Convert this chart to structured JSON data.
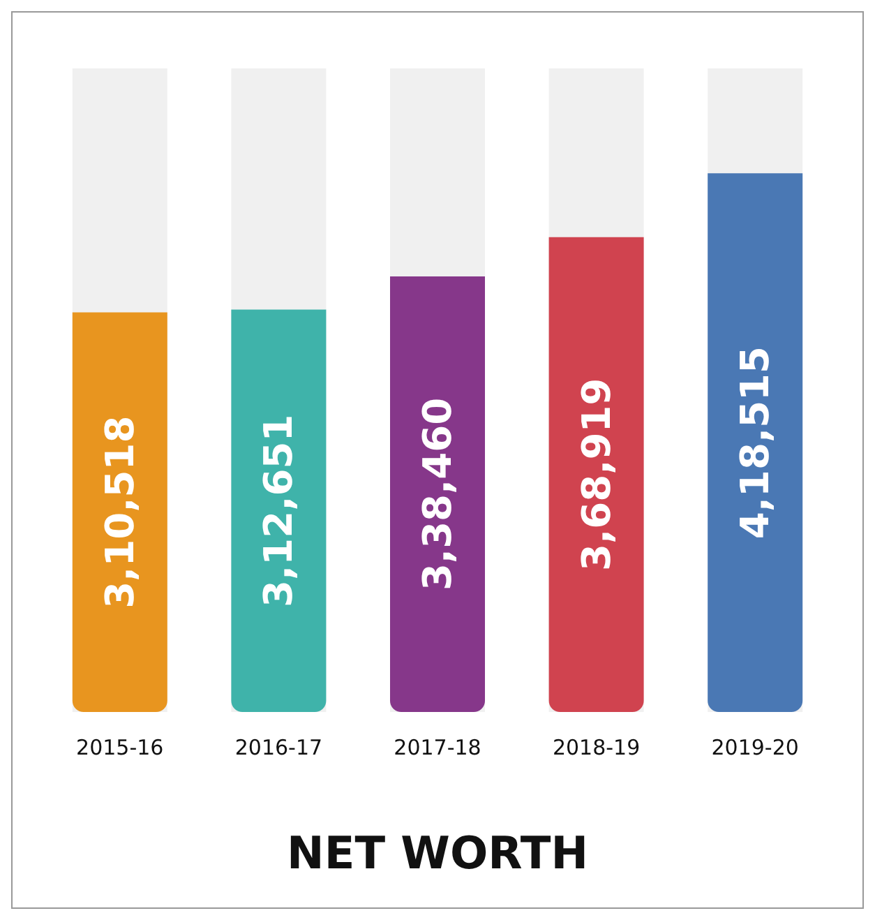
{
  "chart_data": {
    "type": "bar",
    "title": "NET WORTH",
    "categories": [
      "2015-16",
      "2016-17",
      "2017-18",
      "2018-19",
      "2019-20"
    ],
    "values": [
      310518,
      312651,
      338460,
      368919,
      418515
    ],
    "colors": [
      "#e8951f",
      "#3fb3aa",
      "#86378a",
      "#d0434f",
      "#4a78b4"
    ],
    "value_labels": [
      "3,10,518",
      "3,12,651",
      "3,38,460",
      "3,68,919",
      "4,18,515"
    ]
  }
}
